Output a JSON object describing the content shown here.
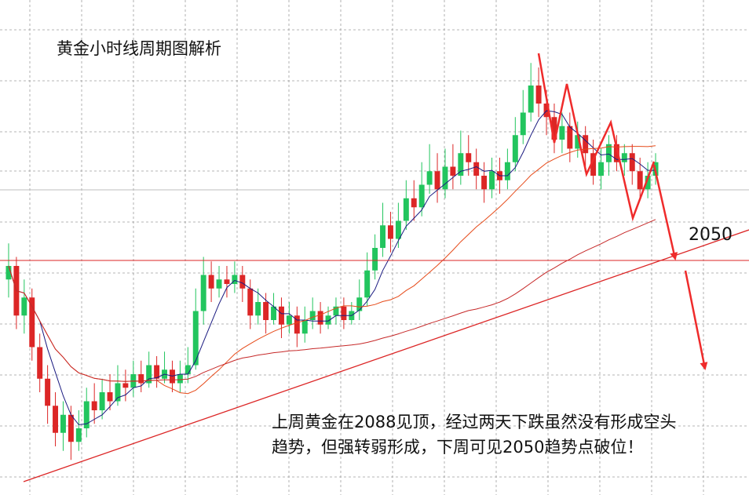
{
  "title": "黄金小时线周期图解析",
  "level_label": "2050",
  "note": {
    "line1": "上周黄金在2088见顶，经过两天下跌虽然没有形成空头",
    "line2": "趋势，但强转弱形成，下周可见2050趋势点破位！"
  },
  "colors": {
    "up": "#22c55e",
    "down": "#dc2626",
    "ma_short": "#1a1a80",
    "ma_mid": "#e64a19",
    "ma_long": "#c62828",
    "trendline": "#dc2626",
    "support_line": "#dc2626",
    "arrow": "#ef2b2b",
    "grid": "#9e9e9e"
  },
  "chart_data": {
    "type": "candlestick",
    "y_axis": "price",
    "grid": "dashed",
    "support_level": 2050,
    "candles": [
      [
        2040,
        2043,
        2048,
        2036
      ],
      [
        2043,
        2032,
        2045,
        2029
      ],
      [
        2032,
        2036,
        2040,
        2028
      ],
      [
        2036,
        2025,
        2038,
        2022
      ],
      [
        2025,
        2018,
        2028,
        2015
      ],
      [
        2018,
        2012,
        2021,
        2008
      ],
      [
        2012,
        2006,
        2015,
        2003
      ],
      [
        2006,
        2010,
        2013,
        2002
      ],
      [
        2010,
        2004,
        2012,
        2000
      ],
      [
        2004,
        2007,
        2011,
        2002
      ],
      [
        2007,
        2013,
        2016,
        2005
      ],
      [
        2013,
        2011,
        2017,
        2008
      ],
      [
        2011,
        2015,
        2018,
        2009
      ],
      [
        2015,
        2013,
        2019,
        2011
      ],
      [
        2013,
        2017,
        2021,
        2012
      ],
      [
        2017,
        2016,
        2020,
        2013
      ],
      [
        2016,
        2019,
        2022,
        2014
      ],
      [
        2019,
        2017,
        2022,
        2015
      ],
      [
        2017,
        2021,
        2024,
        2016
      ],
      [
        2021,
        2018,
        2023,
        2016
      ],
      [
        2018,
        2020,
        2024,
        2017
      ],
      [
        2020,
        2017,
        2022,
        2015
      ],
      [
        2017,
        2019,
        2022,
        2015
      ],
      [
        2019,
        2021,
        2025,
        2017
      ],
      [
        2021,
        2033,
        2038,
        2020
      ],
      [
        2033,
        2041,
        2045,
        2030
      ],
      [
        2041,
        2038,
        2044,
        2035
      ],
      [
        2038,
        2040,
        2043,
        2036
      ],
      [
        2040,
        2039,
        2043,
        2036
      ],
      [
        2039,
        2041,
        2044,
        2037
      ],
      [
        2041,
        2038,
        2043,
        2035
      ],
      [
        2038,
        2032,
        2040,
        2029
      ],
      [
        2032,
        2035,
        2038,
        2030
      ],
      [
        2035,
        2031,
        2037,
        2028
      ],
      [
        2031,
        2034,
        2037,
        2030
      ],
      [
        2034,
        2030,
        2036,
        2027
      ],
      [
        2030,
        2032,
        2035,
        2028
      ],
      [
        2032,
        2028,
        2034,
        2025
      ],
      [
        2028,
        2031,
        2034,
        2026
      ],
      [
        2031,
        2033,
        2036,
        2029
      ],
      [
        2033,
        2030,
        2035,
        2028
      ],
      [
        2030,
        2032,
        2034,
        2029
      ],
      [
        2032,
        2034,
        2036,
        2030
      ],
      [
        2034,
        2031,
        2036,
        2029
      ],
      [
        2031,
        2033,
        2035,
        2030
      ],
      [
        2033,
        2036,
        2040,
        2031
      ],
      [
        2036,
        2042,
        2046,
        2034
      ],
      [
        2042,
        2047,
        2050,
        2040
      ],
      [
        2047,
        2052,
        2057,
        2045
      ],
      [
        2052,
        2049,
        2055,
        2046
      ],
      [
        2049,
        2053,
        2057,
        2047
      ],
      [
        2053,
        2058,
        2062,
        2051
      ],
      [
        2058,
        2056,
        2062,
        2053
      ],
      [
        2056,
        2061,
        2066,
        2054
      ],
      [
        2061,
        2064,
        2070,
        2059
      ],
      [
        2064,
        2060,
        2068,
        2057
      ],
      [
        2060,
        2065,
        2069,
        2058
      ],
      [
        2065,
        2063,
        2070,
        2060
      ],
      [
        2063,
        2068,
        2073,
        2061
      ],
      [
        2068,
        2066,
        2072,
        2063
      ],
      [
        2066,
        2063,
        2069,
        2060
      ],
      [
        2063,
        2060,
        2066,
        2057
      ],
      [
        2060,
        2064,
        2067,
        2058
      ],
      [
        2064,
        2062,
        2067,
        2059
      ],
      [
        2062,
        2066,
        2069,
        2060
      ],
      [
        2066,
        2072,
        2076,
        2064
      ],
      [
        2072,
        2077,
        2082,
        2070
      ],
      [
        2077,
        2083,
        2088,
        2075
      ],
      [
        2083,
        2079,
        2087,
        2076
      ],
      [
        2079,
        2076,
        2082,
        2072
      ],
      [
        2076,
        2071,
        2079,
        2068
      ],
      [
        2071,
        2074,
        2077,
        2068
      ],
      [
        2074,
        2069,
        2077,
        2066
      ],
      [
        2069,
        2072,
        2075,
        2067
      ],
      [
        2072,
        2068,
        2074,
        2065
      ],
      [
        2068,
        2063,
        2071,
        2061
      ],
      [
        2063,
        2066,
        2069,
        2060
      ],
      [
        2066,
        2070,
        2072,
        2063
      ],
      [
        2070,
        2066,
        2072,
        2064
      ],
      [
        2066,
        2068,
        2070,
        2063
      ],
      [
        2068,
        2064,
        2070,
        2061
      ],
      [
        2064,
        2060,
        2067,
        2058
      ],
      [
        2060,
        2063,
        2066,
        2058
      ],
      [
        2063,
        2066,
        2068,
        2061
      ]
    ],
    "ma_short": "5-period moving average",
    "ma_mid": "20-period moving average",
    "ma_long": "60-period moving average",
    "annotations": [
      "2050"
    ]
  }
}
